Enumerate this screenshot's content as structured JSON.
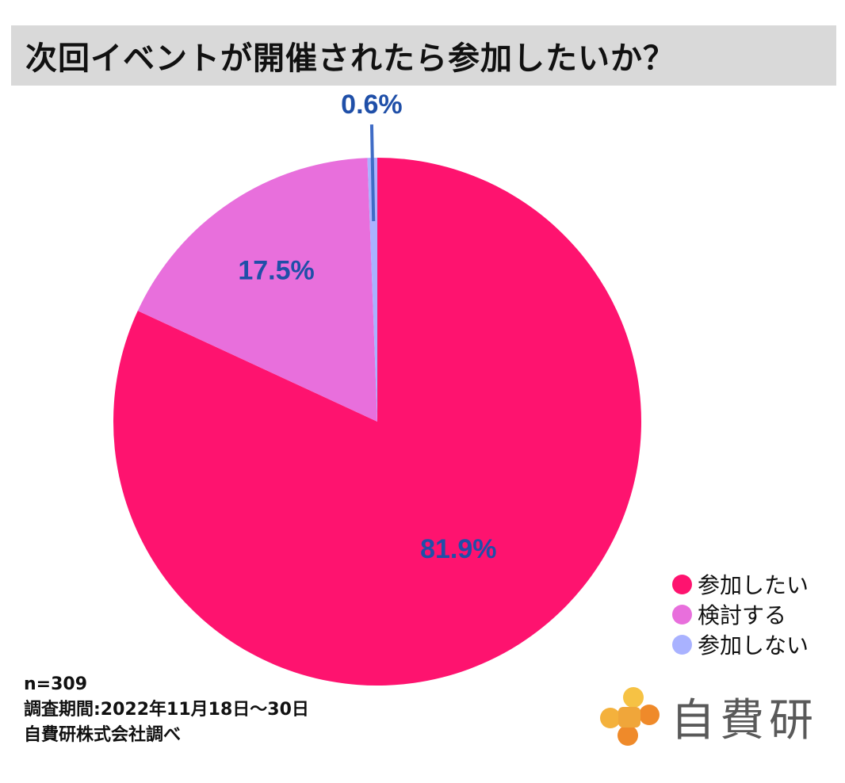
{
  "title": "次回イベントが開催されたら参加したいか？",
  "chart_data": {
    "type": "pie",
    "title": "次回イベントが開催されたら参加したいか？",
    "categories": [
      "参加したい",
      "検討する",
      "参加しない"
    ],
    "values": [
      81.9,
      17.5,
      0.6
    ],
    "labels": [
      "81.9%",
      "17.5%",
      "0.6%"
    ],
    "colors": [
      "#fe136f",
      "#e86fdc",
      "#a9b2ff"
    ],
    "label_color": "#1f4fa8",
    "start": "12 o'clock",
    "direction": "clockwise",
    "legend_position": "bottom-right"
  },
  "footnote": {
    "sample": "n=309",
    "period": "調査期間:2022年11月18日～30日",
    "source": "自費研株式会社調べ"
  },
  "logo": {
    "text": "自費研",
    "colors": [
      "#f6c244",
      "#f0a63a",
      "#ef8a2a",
      "#f4b13c"
    ]
  }
}
